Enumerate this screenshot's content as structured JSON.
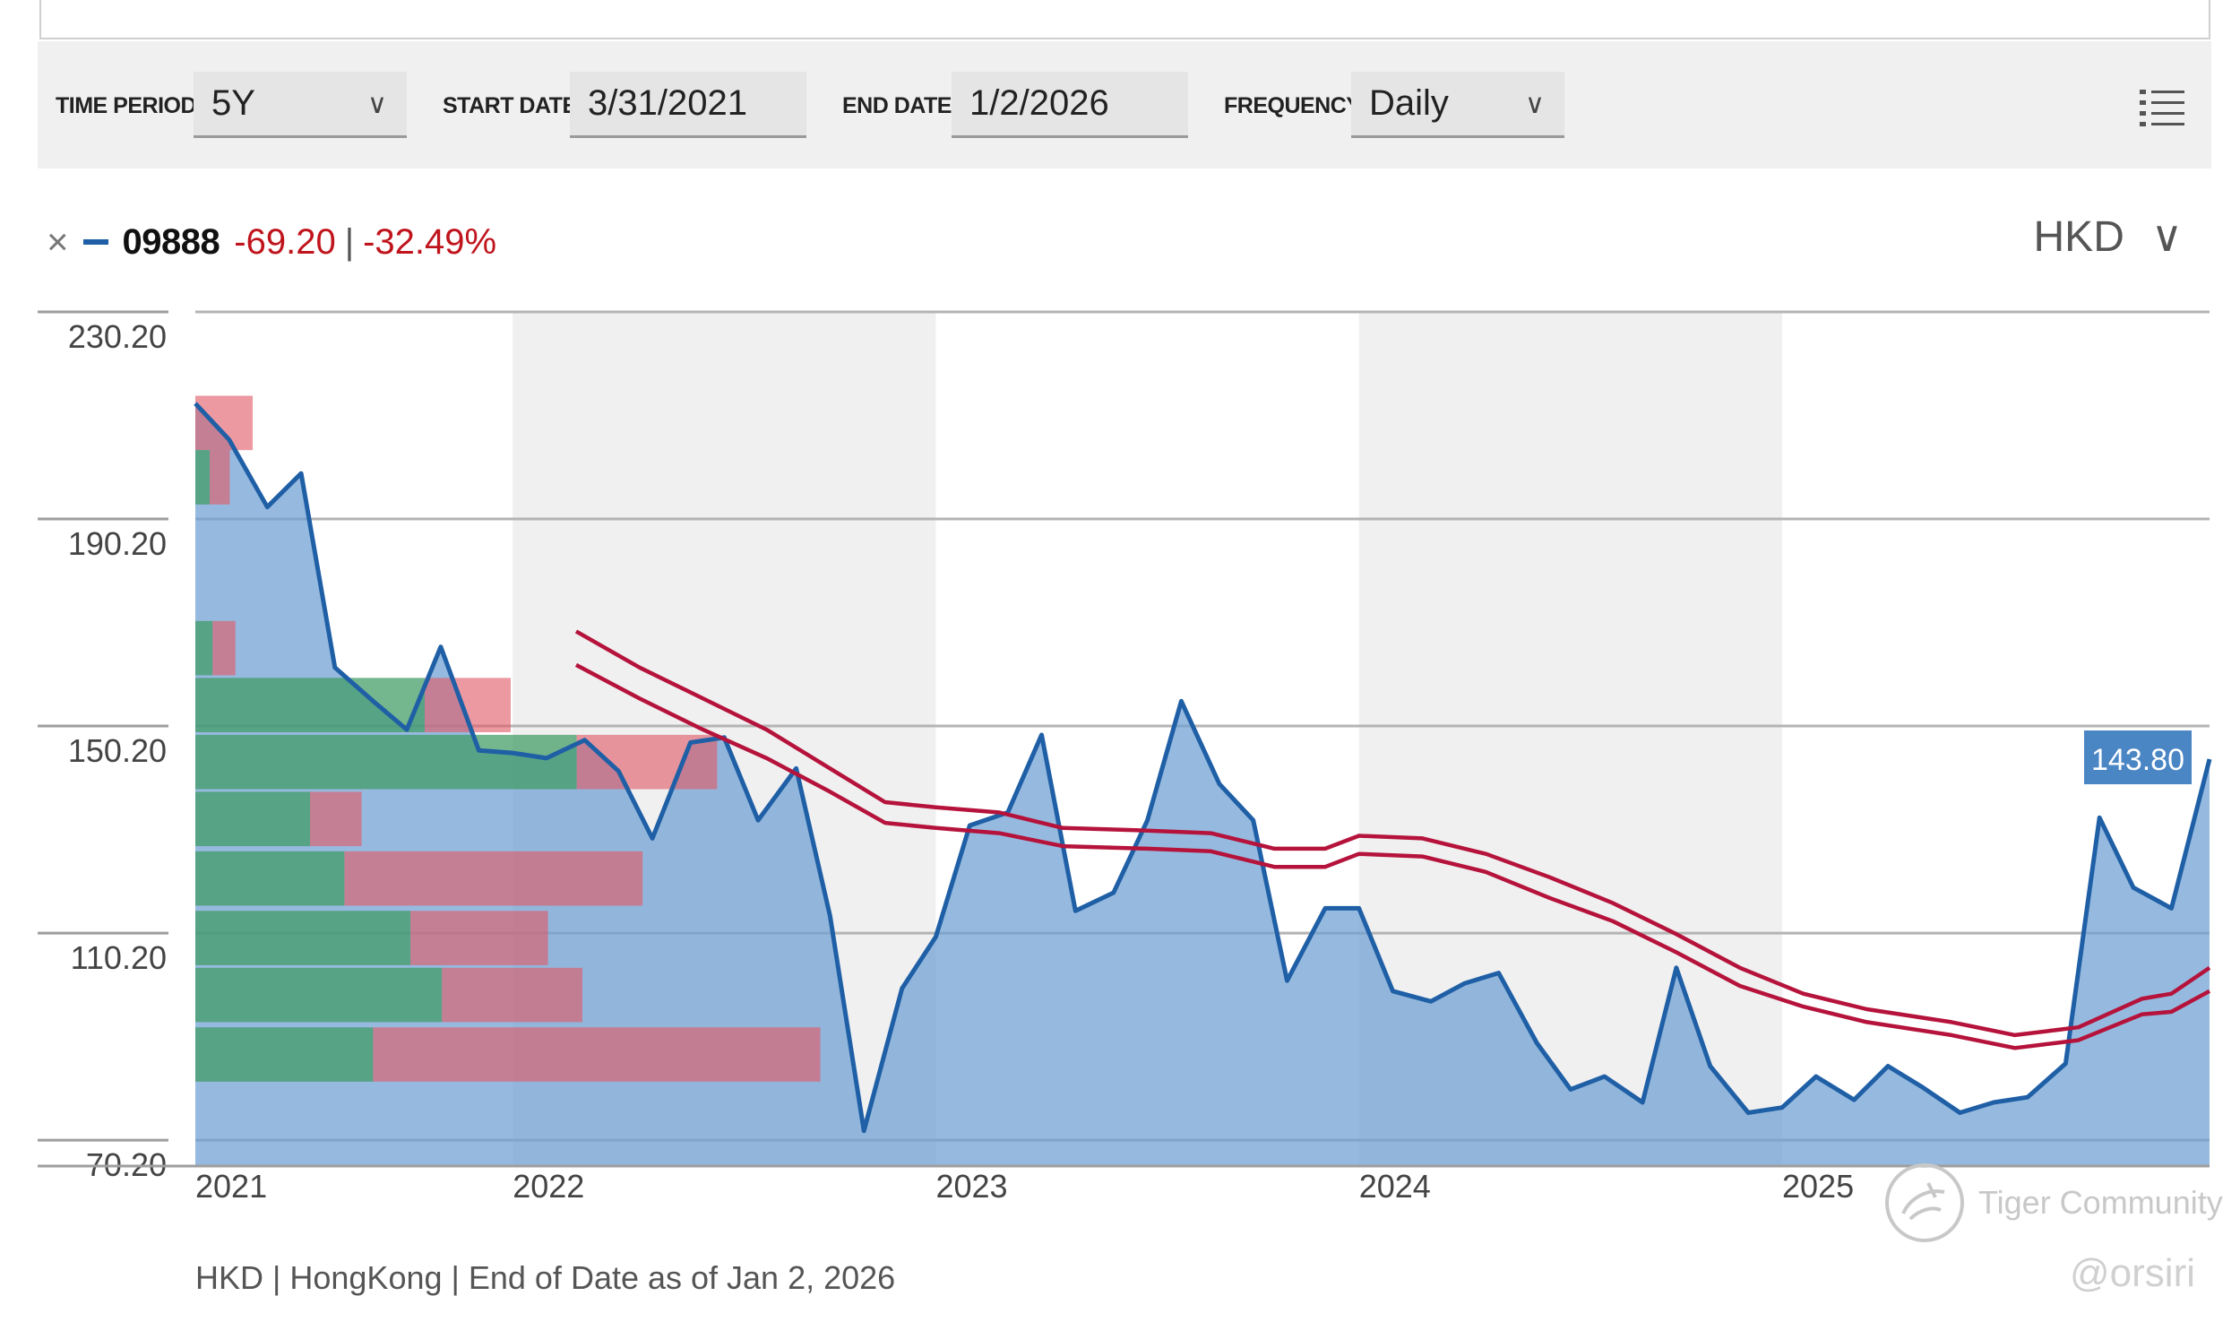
{
  "toolbar": {
    "time_period_label": "TIME PERIOD",
    "time_period_value": "5Y",
    "start_date_label": "START DATE",
    "start_date_value": "3/31/2021",
    "end_date_label": "END DATE",
    "end_date_value": "1/2/2026",
    "frequency_label": "FREQUENCY",
    "frequency_value": "Daily",
    "chevron_icon": "chevron-down-icon",
    "menu_icon": "list-icon"
  },
  "legend": {
    "close_glyph": "×",
    "ticker": "09888",
    "change": "-69.20",
    "separator": "|",
    "change_pct": "-32.49%",
    "series_color": "#1f5fa6",
    "negative_color": "#c0141d"
  },
  "currency": {
    "label": "HKD",
    "chevron": "∨"
  },
  "footer": "HKD | HongKong | End of Date as of Jan 2, 2026",
  "watermark": {
    "brand": "Tiger Community",
    "handle": "@orsiri"
  },
  "chart_data": {
    "type": "area",
    "y_ticks": [
      "230.20",
      "190.20",
      "150.20",
      "110.20",
      "70.20"
    ],
    "y_tick_values": [
      230.2,
      190.2,
      150.2,
      110.2,
      70.2
    ],
    "ylim": [
      65.2,
      230.2
    ],
    "x_ticks": [
      "2021",
      "2022",
      "2023",
      "2024",
      "2025"
    ],
    "x_tick_values": [
      2021.25,
      2022.0,
      2023.0,
      2024.0,
      2025.0
    ],
    "xlim": [
      2021.25,
      2026.01
    ],
    "alt_band_years": [
      [
        2022,
        2023
      ],
      [
        2024,
        2025
      ]
    ],
    "last_value_label": "143.80",
    "series": [
      {
        "name": "09888",
        "color": "#1f5fa6",
        "points": [
          [
            2021.25,
            212.5
          ],
          [
            2021.33,
            205.5
          ],
          [
            2021.42,
            192.5
          ],
          [
            2021.5,
            199.0
          ],
          [
            2021.58,
            161.5
          ],
          [
            2021.67,
            155.0
          ],
          [
            2021.75,
            149.5
          ],
          [
            2021.83,
            165.5
          ],
          [
            2021.92,
            145.5
          ],
          [
            2022.0,
            145.0
          ],
          [
            2022.08,
            144.0
          ],
          [
            2022.17,
            147.5
          ],
          [
            2022.25,
            141.5
          ],
          [
            2022.33,
            128.5
          ],
          [
            2022.42,
            147.0
          ],
          [
            2022.5,
            148.0
          ],
          [
            2022.58,
            132.0
          ],
          [
            2022.67,
            142.0
          ],
          [
            2022.75,
            113.5
          ],
          [
            2022.83,
            72.0
          ],
          [
            2022.92,
            99.5
          ],
          [
            2023.0,
            109.5
          ],
          [
            2023.08,
            131.0
          ],
          [
            2023.17,
            133.5
          ],
          [
            2023.25,
            148.5
          ],
          [
            2023.33,
            114.5
          ],
          [
            2023.42,
            118.0
          ],
          [
            2023.5,
            132.0
          ],
          [
            2023.58,
            155.0
          ],
          [
            2023.67,
            139.0
          ],
          [
            2023.75,
            132.0
          ],
          [
            2023.83,
            101.0
          ],
          [
            2023.92,
            115.0
          ],
          [
            2024.0,
            115.0
          ],
          [
            2024.08,
            99.0
          ],
          [
            2024.17,
            97.0
          ],
          [
            2024.25,
            100.5
          ],
          [
            2024.33,
            102.5
          ],
          [
            2024.42,
            89.0
          ],
          [
            2024.5,
            80.0
          ],
          [
            2024.58,
            82.5
          ],
          [
            2024.67,
            77.5
          ],
          [
            2024.75,
            103.5
          ],
          [
            2024.83,
            84.5
          ],
          [
            2024.92,
            75.5
          ],
          [
            2025.0,
            76.5
          ],
          [
            2025.08,
            82.5
          ],
          [
            2025.17,
            78.0
          ],
          [
            2025.25,
            84.5
          ],
          [
            2025.33,
            80.5
          ],
          [
            2025.42,
            75.5
          ],
          [
            2025.5,
            77.5
          ],
          [
            2025.58,
            78.5
          ],
          [
            2025.67,
            85.0
          ],
          [
            2025.75,
            132.5
          ],
          [
            2025.83,
            119.0
          ],
          [
            2025.92,
            115.0
          ],
          [
            2026.01,
            143.8
          ]
        ]
      },
      {
        "name": "",
        "color": "#b5133b",
        "points": [
          [
            2022.15,
            162.0
          ],
          [
            2022.3,
            155.5
          ],
          [
            2022.45,
            149.5
          ],
          [
            2022.6,
            144.0
          ],
          [
            2022.75,
            137.5
          ],
          [
            2022.88,
            131.5
          ],
          [
            2023.0,
            130.5
          ],
          [
            2023.15,
            129.5
          ],
          [
            2023.3,
            127.0
          ],
          [
            2023.5,
            126.5
          ],
          [
            2023.65,
            126.0
          ],
          [
            2023.8,
            123.0
          ],
          [
            2023.92,
            123.0
          ],
          [
            2024.0,
            125.5
          ],
          [
            2024.15,
            125.0
          ],
          [
            2024.3,
            122.0
          ],
          [
            2024.45,
            117.0
          ],
          [
            2024.6,
            112.5
          ],
          [
            2024.75,
            106.5
          ],
          [
            2024.9,
            100.0
          ],
          [
            2025.05,
            96.0
          ],
          [
            2025.2,
            93.0
          ],
          [
            2025.4,
            90.5
          ],
          [
            2025.55,
            88.0
          ],
          [
            2025.7,
            89.5
          ],
          [
            2025.85,
            94.5
          ],
          [
            2025.92,
            95.0
          ],
          [
            2026.01,
            99.0
          ]
        ]
      },
      {
        "name": "",
        "color": "#b5133b",
        "points": [
          [
            2022.15,
            168.5
          ],
          [
            2022.3,
            161.5
          ],
          [
            2022.45,
            155.5
          ],
          [
            2022.6,
            149.5
          ],
          [
            2022.75,
            142.0
          ],
          [
            2022.88,
            135.5
          ],
          [
            2023.0,
            134.5
          ],
          [
            2023.15,
            133.5
          ],
          [
            2023.3,
            130.5
          ],
          [
            2023.5,
            130.0
          ],
          [
            2023.65,
            129.5
          ],
          [
            2023.8,
            126.5
          ],
          [
            2023.92,
            126.5
          ],
          [
            2024.0,
            129.0
          ],
          [
            2024.15,
            128.5
          ],
          [
            2024.3,
            125.5
          ],
          [
            2024.45,
            121.0
          ],
          [
            2024.6,
            116.0
          ],
          [
            2024.75,
            110.0
          ],
          [
            2024.9,
            103.5
          ],
          [
            2025.05,
            98.5
          ],
          [
            2025.2,
            95.5
          ],
          [
            2025.4,
            93.0
          ],
          [
            2025.55,
            90.5
          ],
          [
            2025.7,
            92.0
          ],
          [
            2025.85,
            97.5
          ],
          [
            2025.92,
            98.5
          ],
          [
            2026.01,
            103.5
          ]
        ]
      }
    ],
    "volume_profile": {
      "type": "horizontal-bar",
      "colors": {
        "up": "#3e9a62",
        "down": "#e05b67"
      },
      "rows": [
        {
          "price_low": 203.5,
          "price_high": 214.0,
          "up": 0.0,
          "down": 0.2
        },
        {
          "price_low": 193.0,
          "price_high": 203.5,
          "up": 0.05,
          "down": 0.07
        },
        {
          "price_low": 160.0,
          "price_high": 170.5,
          "up": 0.06,
          "down": 0.08
        },
        {
          "price_low": 149.0,
          "price_high": 159.5,
          "up": 0.8,
          "down": 0.3
        },
        {
          "price_low": 138.0,
          "price_high": 148.5,
          "up": 1.33,
          "down": 0.49
        },
        {
          "price_low": 127.0,
          "price_high": 137.5,
          "up": 0.4,
          "down": 0.18
        },
        {
          "price_low": 115.5,
          "price_high": 126.0,
          "up": 0.52,
          "down": 1.04
        },
        {
          "price_low": 104.0,
          "price_high": 114.5,
          "up": 0.75,
          "down": 0.48
        },
        {
          "price_low": 93.0,
          "price_high": 103.5,
          "up": 0.86,
          "down": 0.49
        },
        {
          "price_low": 81.5,
          "price_high": 92.0,
          "up": 0.62,
          "down": 1.56
        }
      ]
    }
  }
}
